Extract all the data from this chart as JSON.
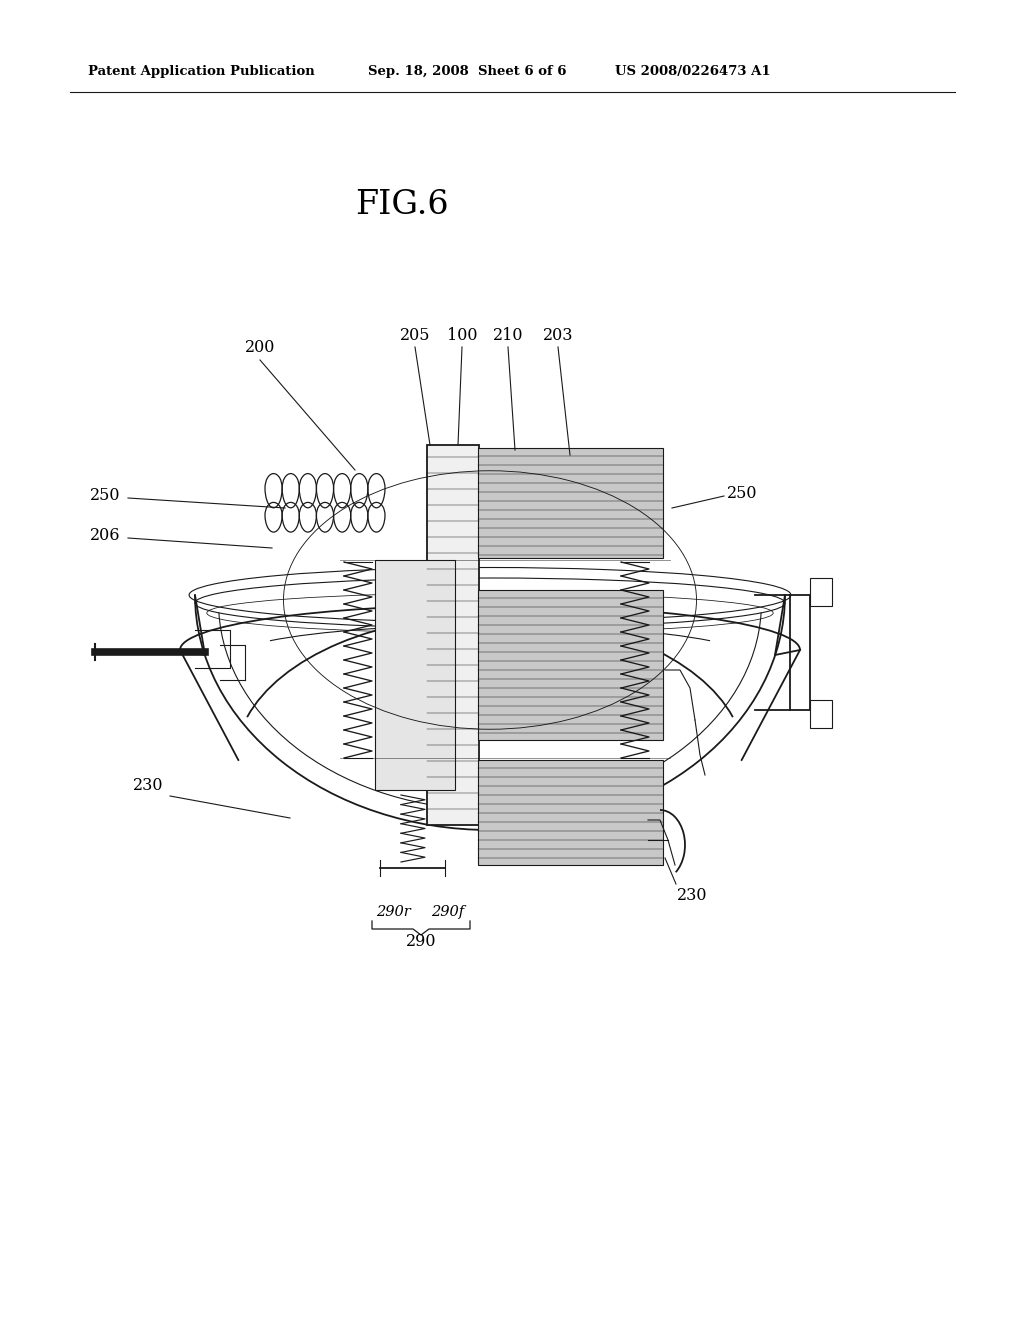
{
  "background_color": "#ffffff",
  "title_header": "Patent Application Publication",
  "date_header": "Sep. 18, 2008  Sheet 6 of 6",
  "patent_num": "US 2008/0226473 A1",
  "fig_label": "FIG.6",
  "line_color": "#1a1a1a",
  "text_color": "#000000"
}
